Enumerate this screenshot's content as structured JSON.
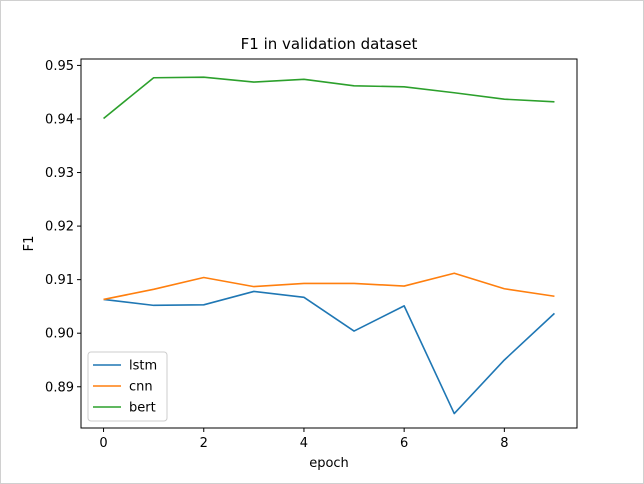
{
  "chart_data": {
    "type": "line",
    "title": "F1 in validation dataset",
    "xlabel": "epoch",
    "ylabel": "F1",
    "x": [
      0,
      1,
      2,
      3,
      4,
      5,
      6,
      7,
      8,
      9
    ],
    "xlim": [
      -0.45,
      9.45
    ],
    "ylim": [
      0.8823,
      0.9512
    ],
    "xticks": [
      0,
      2,
      4,
      6,
      8
    ],
    "yticks": [
      0.89,
      0.9,
      0.91,
      0.92,
      0.93,
      0.94,
      0.95
    ],
    "ytick_labels": [
      "0.89",
      "0.90",
      "0.91",
      "0.92",
      "0.93",
      "0.94",
      "0.95"
    ],
    "grid": false,
    "legend_position": "lower-left",
    "series": [
      {
        "name": "lstm",
        "color": "#1f77b4",
        "values": [
          0.9063,
          0.9052,
          0.9053,
          0.9078,
          0.9067,
          0.9004,
          0.9051,
          0.885,
          0.895,
          0.9037
        ]
      },
      {
        "name": "cnn",
        "color": "#ff7f0e",
        "values": [
          0.9063,
          0.9082,
          0.9104,
          0.9087,
          0.9093,
          0.9093,
          0.9088,
          0.9112,
          0.9083,
          0.9069
        ]
      },
      {
        "name": "bert",
        "color": "#2ca02c",
        "values": [
          0.9401,
          0.9477,
          0.9478,
          0.9469,
          0.9474,
          0.9462,
          0.946,
          0.9449,
          0.9437,
          0.9432
        ]
      }
    ]
  }
}
